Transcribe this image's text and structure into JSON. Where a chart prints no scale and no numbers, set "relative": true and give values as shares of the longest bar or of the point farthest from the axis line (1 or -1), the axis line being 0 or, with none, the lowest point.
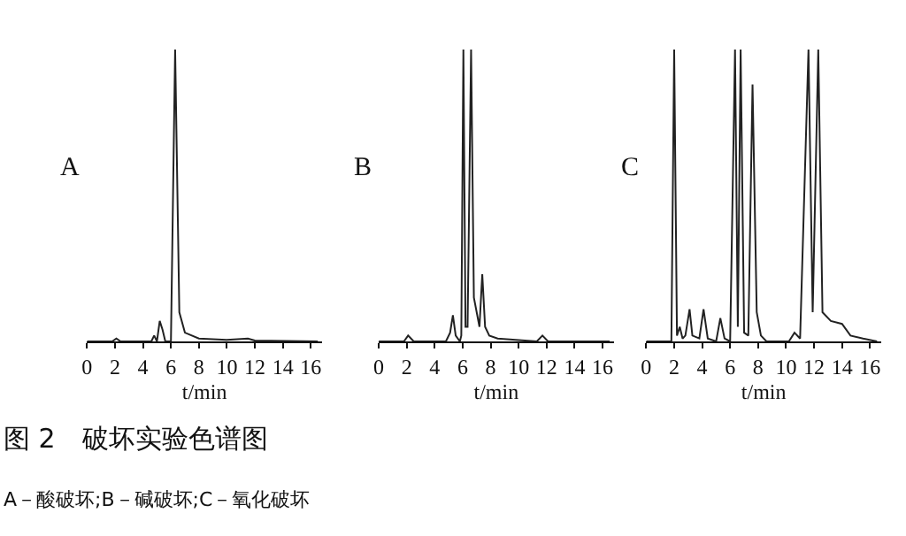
{
  "chart_data": [
    {
      "type": "line",
      "relative": true,
      "title": "A",
      "xlabel": "t/min",
      "xlim": [
        0,
        16.8
      ],
      "xticks": [
        0,
        2,
        4,
        6,
        8,
        10,
        12,
        14,
        16
      ],
      "tick_labels": "x",
      "x": [
        0,
        1.8,
        2.1,
        2.4,
        4.6,
        4.8,
        5.0,
        5.2,
        5.4,
        5.6,
        6.0,
        6.3,
        6.5,
        6.6,
        7.0,
        8.0,
        10.0,
        11.5,
        12.0,
        16.5
      ],
      "series": [
        {
          "color": "#222222",
          "values": [
            0,
            0,
            0.01,
            0,
            0,
            0.02,
            0,
            0.07,
            0.04,
            0,
            0,
            1,
            0.4,
            0.1,
            0.03,
            0.01,
            0.005,
            0.01,
            0.003,
            0
          ]
        }
      ],
      "annotations": [
        "图 2　破坏实验色谱图",
        "A－酸破坏;B－碱破坏;C－氧化破坏"
      ]
    },
    {
      "type": "line",
      "relative": true,
      "title": "B",
      "xlabel": "t/min",
      "xlim": [
        0,
        16.8
      ],
      "xticks": [
        0,
        2,
        4,
        6,
        8,
        10,
        12,
        14,
        16
      ],
      "tick_labels": "x",
      "x": [
        0,
        1.8,
        2.1,
        2.5,
        4.8,
        5.1,
        5.3,
        5.5,
        5.8,
        5.9,
        6.05,
        6.2,
        6.35,
        6.6,
        6.8,
        7.2,
        7.4,
        7.6,
        7.9,
        8.5,
        11.3,
        11.7,
        12.1,
        16.5
      ],
      "series": [
        {
          "color": "#222222",
          "values": [
            0,
            0,
            0.02,
            0,
            0,
            0.03,
            0.09,
            0.02,
            0,
            0.02,
            1,
            0.05,
            0.05,
            1,
            0.15,
            0.05,
            0.23,
            0.05,
            0.02,
            0.01,
            0,
            0.02,
            0,
            0
          ]
        }
      ]
    },
    {
      "type": "line",
      "relative": true,
      "title": "C",
      "xlabel": "t/min",
      "xlim": [
        0,
        16.8
      ],
      "xticks": [
        0,
        2,
        4,
        6,
        8,
        10,
        12,
        14,
        16
      ],
      "tick_labels": "x",
      "x": [
        0,
        1.8,
        2.0,
        2.2,
        2.4,
        2.6,
        2.8,
        3.1,
        3.3,
        3.8,
        4.1,
        4.4,
        5.0,
        5.3,
        5.6,
        6.0,
        6.35,
        6.55,
        6.75,
        7.0,
        7.3,
        7.6,
        7.9,
        8.2,
        8.6,
        10.2,
        10.6,
        11.0,
        11.6,
        11.9,
        12.3,
        12.6,
        13.2,
        14.0,
        14.6,
        15.5,
        16.5
      ],
      "series": [
        {
          "color": "#222222",
          "values": [
            0,
            0,
            1,
            0.02,
            0.05,
            0.01,
            0.02,
            0.11,
            0.02,
            0.01,
            0.11,
            0.01,
            0,
            0.08,
            0.01,
            0,
            1,
            0.05,
            1,
            0.03,
            0.02,
            0.88,
            0.1,
            0.02,
            0,
            0,
            0.03,
            0.01,
            1,
            0.1,
            1,
            0.1,
            0.07,
            0.06,
            0.02,
            0.01,
            0
          ]
        }
      ]
    }
  ]
}
